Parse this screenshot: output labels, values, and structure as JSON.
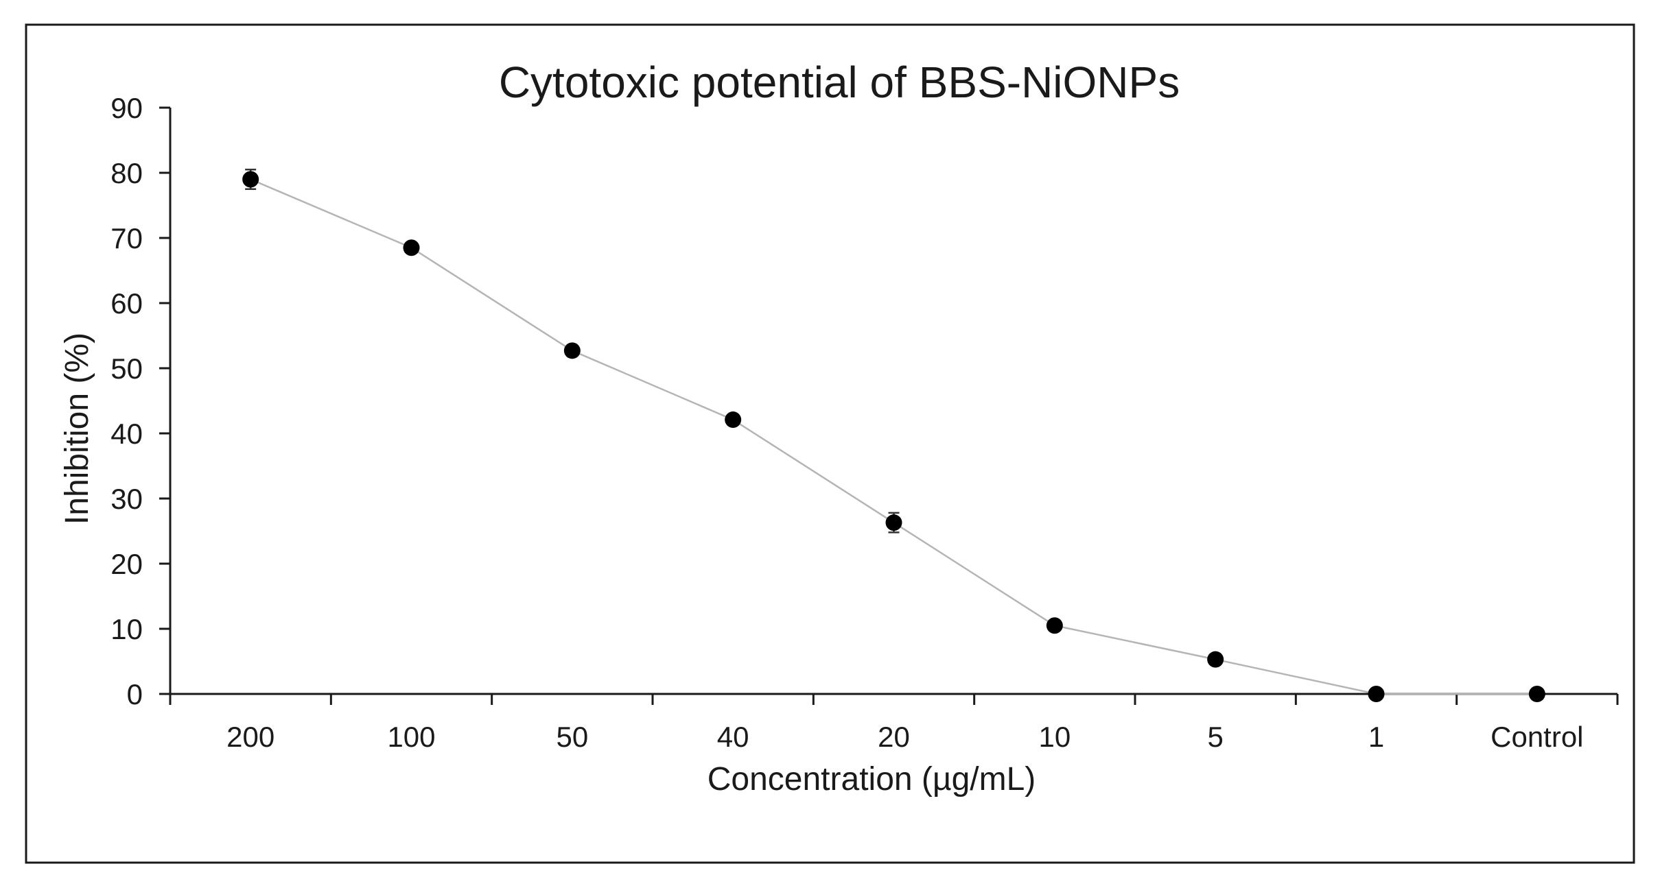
{
  "chart_data": {
    "type": "line",
    "title": "Cytotoxic potential of BBS-NiONPs",
    "xlabel": "Concentration (µg/mL)",
    "ylabel": "Inhibition (%)",
    "categories": [
      "200",
      "100",
      "50",
      "40",
      "20",
      "10",
      "5",
      "1",
      "Control"
    ],
    "series": [
      {
        "values": [
          79,
          68.5,
          52.7,
          42.1,
          26.3,
          10.5,
          5.3,
          0,
          0
        ],
        "errors": [
          1.5,
          0.5,
          0.5,
          0.5,
          1.5,
          0.3,
          0.3,
          0,
          0
        ]
      }
    ],
    "ylim": [
      0,
      90
    ],
    "yticks": [
      0,
      10,
      20,
      30,
      40,
      50,
      60,
      70,
      80,
      90
    ],
    "grid": false,
    "legend": "none",
    "colors": {
      "marker": "#000000",
      "line": "#b5b5b5",
      "axis": "#1a1a1a"
    }
  }
}
